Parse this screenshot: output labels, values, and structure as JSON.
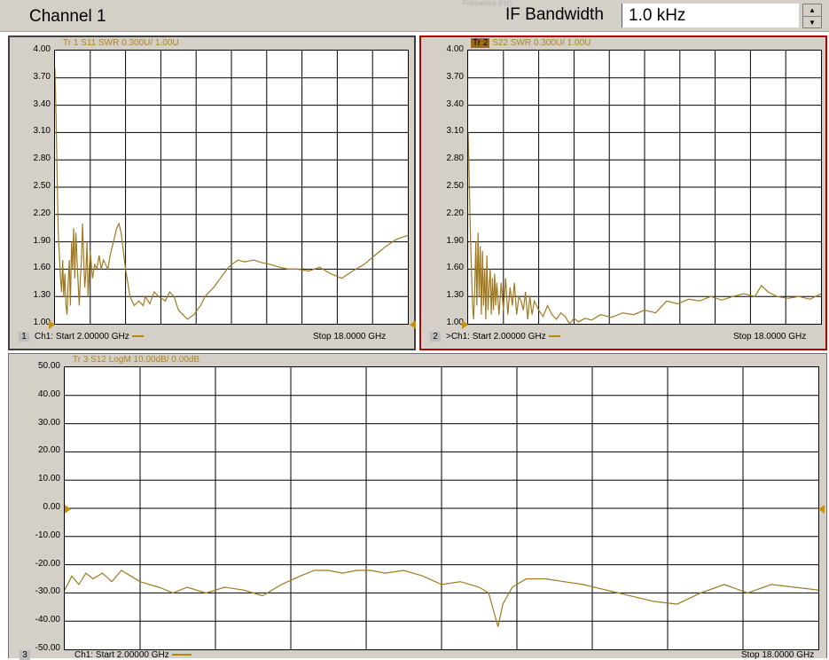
{
  "header": {
    "channel_title": "Channel 1",
    "if_label": "IF Bandwidth",
    "if_value": "1.0 kHz",
    "ghost_text": "Frequency (Hz)"
  },
  "colors": {
    "trace": "#a0781e",
    "frame_active": "#b80000",
    "marker": "#c89100"
  },
  "panels": [
    {
      "number": "1",
      "trace_title": "Tr 1  S11 SWR 0.300U/  1.00U",
      "trace_title_highlight": "",
      "start_label": "Ch1: Start  2.00000 GHz",
      "stop_label": "Stop  18.0000 GHz",
      "ticks": [
        "4.00",
        "3.70",
        "3.40",
        "3.10",
        "2.80",
        "2.50",
        "2.20",
        "1.90",
        "1.60",
        "1.30",
        "1.00"
      ]
    },
    {
      "number": "2",
      "trace_title": "S22 SWR 0.300U/  1.00U",
      "trace_title_highlight": "Tr 2",
      "start_label": ">Ch1: Start  2.00000 GHz",
      "stop_label": "Stop  18.0000 GHz",
      "ticks": [
        "4.00",
        "3.70",
        "3.40",
        "3.10",
        "2.80",
        "2.50",
        "2.20",
        "1.90",
        "1.60",
        "1.30",
        "1.00"
      ]
    },
    {
      "number": "3",
      "trace_title": "Tr 3   S12 LogM 10.00dB/  0.00dB",
      "trace_title_highlight": "",
      "start_label": "Ch1: Start  2.00000 GHz",
      "stop_label": "Stop  18.0000 GHz",
      "ticks": [
        "50.00",
        "40.00",
        "30.00",
        "20.00",
        "10.00",
        "0.00",
        "-10.00",
        "-20.00",
        "-30.00",
        "-40.00",
        "-50.00"
      ]
    }
  ],
  "chart_data": [
    {
      "type": "line",
      "ylim": [
        1.0,
        4.0
      ],
      "x_start_ghz": 2.0,
      "x_stop_ghz": 18.0,
      "x": [
        2.0,
        2.05,
        2.1,
        2.15,
        2.2,
        2.25,
        2.3,
        2.35,
        2.4,
        2.45,
        2.5,
        2.55,
        2.6,
        2.65,
        2.7,
        2.75,
        2.8,
        2.85,
        2.9,
        2.95,
        3.0,
        3.05,
        3.1,
        3.15,
        3.2,
        3.25,
        3.3,
        3.35,
        3.4,
        3.45,
        3.5,
        3.6,
        3.7,
        3.8,
        3.9,
        4.0,
        4.1,
        4.2,
        4.3,
        4.4,
        4.5,
        4.6,
        4.7,
        4.8,
        4.9,
        5.0,
        5.2,
        5.4,
        5.6,
        5.8,
        6.0,
        6.1,
        6.3,
        6.5,
        6.7,
        7.0,
        7.2,
        7.4,
        7.6,
        7.8,
        8.0,
        8.3,
        8.6,
        8.8,
        9.0,
        9.2,
        9.5,
        9.8,
        10.0,
        10.3,
        10.6,
        11.0,
        11.4,
        11.8,
        12.2,
        12.6,
        13.0,
        13.5,
        14.0,
        14.5,
        15.0,
        15.5,
        16.0,
        16.5,
        17.0,
        17.5,
        18.0
      ],
      "values": [
        3.8,
        3.3,
        2.6,
        2.0,
        1.75,
        1.5,
        1.35,
        1.7,
        1.3,
        1.55,
        1.2,
        1.1,
        1.45,
        1.7,
        1.2,
        1.9,
        1.6,
        2.05,
        1.5,
        2.0,
        1.7,
        1.45,
        1.2,
        1.5,
        1.7,
        2.1,
        1.75,
        1.4,
        1.55,
        1.9,
        1.3,
        1.8,
        1.5,
        1.65,
        1.6,
        1.75,
        1.6,
        1.7,
        1.65,
        1.6,
        1.75,
        1.85,
        1.95,
        2.05,
        2.1,
        2.0,
        1.6,
        1.3,
        1.2,
        1.25,
        1.2,
        1.3,
        1.22,
        1.35,
        1.3,
        1.25,
        1.35,
        1.3,
        1.15,
        1.1,
        1.05,
        1.1,
        1.2,
        1.3,
        1.35,
        1.4,
        1.5,
        1.6,
        1.65,
        1.7,
        1.68,
        1.7,
        1.67,
        1.65,
        1.62,
        1.6,
        1.6,
        1.58,
        1.62,
        1.55,
        1.5,
        1.58,
        1.65,
        1.75,
        1.85,
        1.93,
        1.97
      ]
    },
    {
      "type": "line",
      "ylim": [
        1.0,
        4.0
      ],
      "x_start_ghz": 2.0,
      "x_stop_ghz": 18.0,
      "x": [
        2.0,
        2.05,
        2.1,
        2.15,
        2.2,
        2.25,
        2.3,
        2.35,
        2.4,
        2.45,
        2.5,
        2.55,
        2.6,
        2.65,
        2.7,
        2.75,
        2.8,
        2.85,
        2.9,
        2.95,
        3.0,
        3.05,
        3.1,
        3.15,
        3.2,
        3.25,
        3.3,
        3.4,
        3.5,
        3.6,
        3.7,
        3.8,
        3.9,
        4.0,
        4.1,
        4.2,
        4.3,
        4.4,
        4.5,
        4.6,
        4.7,
        4.8,
        4.9,
        5.0,
        5.2,
        5.4,
        5.6,
        5.8,
        6.0,
        6.2,
        6.4,
        6.6,
        6.8,
        7.0,
        7.3,
        7.6,
        8.0,
        8.5,
        9.0,
        9.5,
        10.0,
        10.5,
        11.0,
        11.5,
        12.0,
        12.5,
        13.0,
        13.5,
        14.0,
        14.5,
        15.0,
        15.3,
        15.6,
        16.0,
        16.5,
        17.0,
        17.5,
        18.0
      ],
      "values": [
        3.1,
        2.6,
        2.0,
        1.6,
        1.2,
        1.05,
        1.4,
        1.9,
        1.2,
        2.0,
        1.3,
        1.85,
        1.1,
        1.8,
        1.2,
        1.6,
        1.05,
        1.75,
        1.15,
        1.4,
        1.6,
        1.1,
        1.5,
        1.15,
        1.55,
        1.2,
        1.45,
        1.1,
        1.45,
        1.15,
        1.5,
        1.1,
        1.4,
        1.2,
        1.45,
        1.1,
        1.3,
        1.25,
        1.15,
        1.35,
        1.05,
        1.3,
        1.1,
        1.25,
        1.15,
        1.08,
        1.2,
        1.1,
        1.05,
        1.12,
        1.08,
        1.0,
        1.06,
        1.02,
        1.06,
        1.04,
        1.1,
        1.07,
        1.12,
        1.1,
        1.15,
        1.12,
        1.25,
        1.22,
        1.27,
        1.25,
        1.3,
        1.26,
        1.3,
        1.33,
        1.3,
        1.42,
        1.35,
        1.3,
        1.28,
        1.3,
        1.27,
        1.33
      ]
    },
    {
      "type": "line",
      "ylim": [
        -50,
        50
      ],
      "x_start_ghz": 2.0,
      "x_stop_ghz": 18.0,
      "x": [
        2.0,
        2.15,
        2.3,
        2.45,
        2.6,
        2.8,
        3.0,
        3.2,
        3.4,
        3.6,
        3.8,
        4.0,
        4.3,
        4.6,
        5.0,
        5.4,
        5.8,
        6.2,
        6.6,
        7.0,
        7.3,
        7.6,
        7.9,
        8.2,
        8.5,
        8.8,
        9.2,
        9.6,
        10.0,
        10.4,
        10.8,
        11.0,
        11.1,
        11.2,
        11.3,
        11.5,
        11.8,
        12.2,
        12.6,
        13.0,
        13.5,
        14.0,
        14.5,
        15.0,
        15.5,
        16.0,
        16.5,
        17.0,
        17.5,
        18.0
      ],
      "values": [
        -29,
        -24,
        -27,
        -23,
        -25,
        -23,
        -26,
        -22,
        -24,
        -26,
        -27,
        -28,
        -30,
        -28,
        -30,
        -28,
        -29,
        -31,
        -27,
        -24,
        -22,
        -22,
        -23,
        -22,
        -22,
        -23,
        -22,
        -24,
        -27,
        -26,
        -28,
        -30,
        -36,
        -42,
        -34,
        -28,
        -25,
        -25,
        -26,
        -27,
        -29,
        -31,
        -33,
        -34,
        -30,
        -27,
        -30,
        -27,
        -28,
        -29
      ]
    }
  ]
}
